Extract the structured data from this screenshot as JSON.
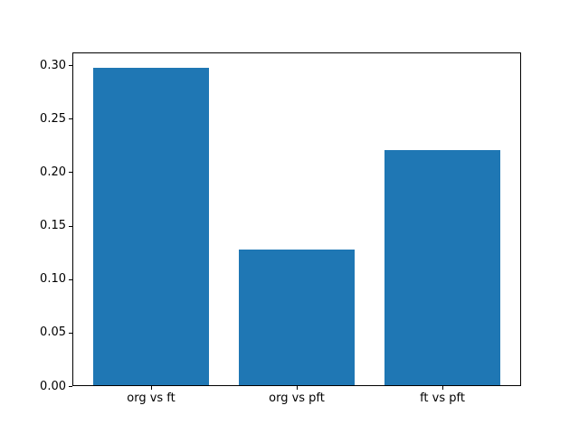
{
  "figure": {
    "background_color": "#ffffff",
    "spine_color": "#000000",
    "tick_color": "#000000",
    "tick_label_color": "#000000"
  },
  "chart_data": {
    "type": "bar",
    "title": "",
    "xlabel": "",
    "ylabel": "",
    "categories": [
      "org vs ft",
      "org vs pft",
      "ft vs pft"
    ],
    "values": [
      0.297,
      0.127,
      0.22
    ],
    "bar_color": "#1f77b4",
    "bar_width_data_units": 0.8,
    "xlim": [
      -0.54,
      2.54
    ],
    "ylim": [
      0,
      0.3119
    ],
    "yticks": [
      {
        "value": 0.0,
        "label": "0.00"
      },
      {
        "value": 0.05,
        "label": "0.05"
      },
      {
        "value": 0.1,
        "label": "0.10"
      },
      {
        "value": 0.15,
        "label": "0.15"
      },
      {
        "value": 0.2,
        "label": "0.20"
      },
      {
        "value": 0.25,
        "label": "0.25"
      },
      {
        "value": 0.3,
        "label": "0.30"
      }
    ],
    "grid": false,
    "legend": null
  }
}
